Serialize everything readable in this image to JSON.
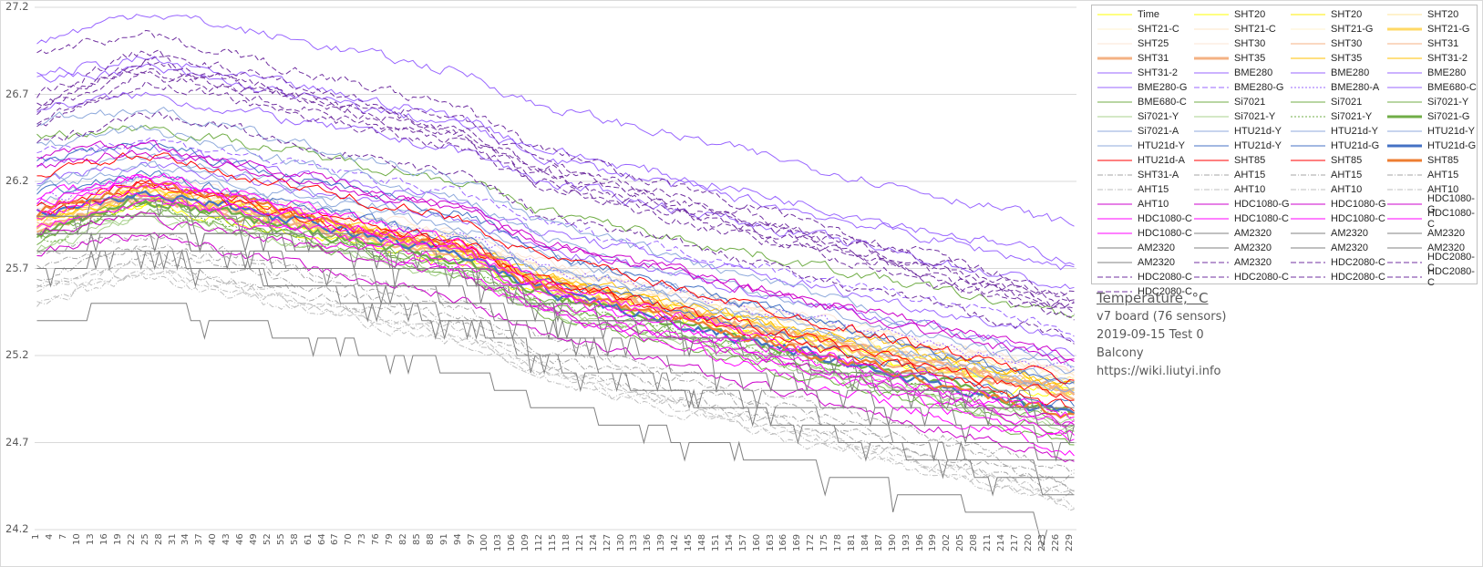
{
  "chart_data": {
    "type": "line",
    "title": "Temperature, °C",
    "annotations": [
      "v7 board (76 sensors)",
      "2019-09-15 Test 0",
      "Balcony",
      "https://wiki.liutyi.info"
    ],
    "xlabel": "",
    "ylabel": "",
    "ylim": [
      24.2,
      27.2
    ],
    "yticks": [
      "27.2",
      "26.7",
      "26.2",
      "25.7",
      "25.2",
      "24.7",
      "24.2"
    ],
    "ytick_values": [
      27.2,
      26.7,
      26.2,
      25.7,
      25.2,
      24.7,
      24.2
    ],
    "x_range": [
      1,
      230
    ],
    "xtick_step": 3,
    "xtick_start": 1,
    "xtick_end": 229,
    "grid": "horizontal",
    "legend_position": "right",
    "series_note": "76 sensor series; values approximated as start/peak/end temperatures read from chart",
    "series": [
      {
        "name": "Time",
        "color": "#ffff00",
        "style": "solid",
        "width": 1,
        "start": 25.95,
        "peak": 26.05,
        "end": 24.95
      },
      {
        "name": "SHT20",
        "color": "#ffff00",
        "style": "solid",
        "width": 1,
        "start": 25.97,
        "peak": 26.1,
        "end": 24.97
      },
      {
        "name": "SHT20",
        "color": "#ffee00",
        "style": "solid",
        "width": 1,
        "start": 25.98,
        "peak": 26.12,
        "end": 25.0
      },
      {
        "name": "SHT20",
        "color": "#ffe699",
        "style": "solid",
        "width": 1,
        "start": 26.0,
        "peak": 26.15,
        "end": 25.05
      },
      {
        "name": "SHT21-C",
        "color": "#fff2cc",
        "style": "solid",
        "width": 1,
        "start": 26.02,
        "peak": 26.2,
        "end": 25.1
      },
      {
        "name": "SHT21-C",
        "color": "#fce4c4",
        "style": "solid",
        "width": 1,
        "start": 26.0,
        "peak": 26.18,
        "end": 25.08
      },
      {
        "name": "SHT21-G",
        "color": "#fff2cc",
        "style": "solid",
        "width": 1,
        "start": 25.99,
        "peak": 26.16,
        "end": 25.05
      },
      {
        "name": "SHT21-G",
        "color": "#ffd966",
        "style": "solid",
        "width": 3,
        "start": 25.97,
        "peak": 26.15,
        "end": 24.98
      },
      {
        "name": "SHT25",
        "color": "#fbe5d6",
        "style": "solid",
        "width": 1,
        "start": 26.05,
        "peak": 26.22,
        "end": 25.12
      },
      {
        "name": "SHT30",
        "color": "#fbe5d6",
        "style": "solid",
        "width": 1,
        "start": 26.03,
        "peak": 26.2,
        "end": 25.1
      },
      {
        "name": "SHT30",
        "color": "#f4b183",
        "style": "solid",
        "width": 1,
        "start": 25.95,
        "peak": 26.14,
        "end": 25.0
      },
      {
        "name": "SHT31",
        "color": "#f4b183",
        "style": "solid",
        "width": 1,
        "start": 25.93,
        "peak": 26.12,
        "end": 24.98
      },
      {
        "name": "SHT31",
        "color": "#f4b183",
        "style": "solid",
        "width": 3,
        "start": 25.92,
        "peak": 26.1,
        "end": 24.96
      },
      {
        "name": "SHT35",
        "color": "#f4b183",
        "style": "solid",
        "width": 3,
        "start": 25.94,
        "peak": 26.12,
        "end": 24.99
      },
      {
        "name": "SHT35",
        "color": "#ffc000",
        "style": "solid",
        "width": 1,
        "start": 25.98,
        "peak": 26.14,
        "end": 25.02
      },
      {
        "name": "SHT31-2",
        "color": "#ffc000",
        "style": "solid",
        "width": 1,
        "start": 26.0,
        "peak": 26.16,
        "end": 25.04
      },
      {
        "name": "SHT31-2",
        "color": "#9966ff",
        "style": "solid",
        "width": 1,
        "start": 27.0,
        "peak": 27.18,
        "end": 25.95
      },
      {
        "name": "BME280",
        "color": "#9966ff",
        "style": "solid",
        "width": 1,
        "start": 26.82,
        "peak": 26.9,
        "end": 25.75
      },
      {
        "name": "BME280",
        "color": "#9966ff",
        "style": "solid",
        "width": 1,
        "start": 26.78,
        "peak": 26.85,
        "end": 25.7
      },
      {
        "name": "BME280",
        "color": "#9966ff",
        "style": "solid",
        "width": 1,
        "start": 26.62,
        "peak": 26.7,
        "end": 25.58
      },
      {
        "name": "BME280-G",
        "color": "#9966ff",
        "style": "solid",
        "width": 1,
        "start": 26.3,
        "peak": 26.4,
        "end": 25.3
      },
      {
        "name": "BME280-G",
        "color": "#9966ff",
        "style": "dash",
        "width": 1,
        "start": 26.35,
        "peak": 26.45,
        "end": 25.35
      },
      {
        "name": "BME280-A",
        "color": "#9966ff",
        "style": "dot",
        "width": 1,
        "start": 26.1,
        "peak": 26.2,
        "end": 25.1
      },
      {
        "name": "BME680-C",
        "color": "#9966ff",
        "style": "solid",
        "width": 1,
        "start": 26.2,
        "peak": 26.3,
        "end": 25.2
      },
      {
        "name": "BME680-C",
        "color": "#70ad47",
        "style": "solid",
        "width": 1,
        "start": 26.45,
        "peak": 26.52,
        "end": 25.42
      },
      {
        "name": "Si7021",
        "color": "#70ad47",
        "style": "solid",
        "width": 1,
        "start": 25.9,
        "peak": 26.1,
        "end": 24.8
      },
      {
        "name": "Si7021",
        "color": "#70ad47",
        "style": "solid",
        "width": 1,
        "start": 25.88,
        "peak": 26.08,
        "end": 24.75
      },
      {
        "name": "Si7021-Y",
        "color": "#70ad47",
        "style": "solid",
        "width": 1,
        "start": 25.85,
        "peak": 26.05,
        "end": 24.7
      },
      {
        "name": "Si7021-Y",
        "color": "#a9d18e",
        "style": "solid",
        "width": 1,
        "start": 25.8,
        "peak": 26.0,
        "end": 24.78
      },
      {
        "name": "Si7021-Y",
        "color": "#a9d18e",
        "style": "solid",
        "width": 1,
        "start": 25.82,
        "peak": 26.02,
        "end": 24.8
      },
      {
        "name": "Si7021-Y",
        "color": "#70ad47",
        "style": "dot",
        "width": 1,
        "start": 25.86,
        "peak": 26.05,
        "end": 24.85
      },
      {
        "name": "Si7021-G",
        "color": "#70ad47",
        "style": "solid",
        "width": 3,
        "start": 25.9,
        "peak": 26.1,
        "end": 24.87
      },
      {
        "name": "Si7021-A",
        "color": "#8faadc",
        "style": "solid",
        "width": 1,
        "start": 26.55,
        "peak": 26.62,
        "end": 25.15
      },
      {
        "name": "HTU21d-Y",
        "color": "#8faadc",
        "style": "solid",
        "width": 1,
        "start": 26.4,
        "peak": 26.5,
        "end": 25.1
      },
      {
        "name": "HTU21d-Y",
        "color": "#8faadc",
        "style": "solid",
        "width": 1,
        "start": 26.2,
        "peak": 26.35,
        "end": 25.05
      },
      {
        "name": "HTU21d-Y",
        "color": "#8faadc",
        "style": "solid",
        "width": 1,
        "start": 26.15,
        "peak": 26.3,
        "end": 25.0
      },
      {
        "name": "HTU21d-Y",
        "color": "#8faadc",
        "style": "solid",
        "width": 1,
        "start": 26.1,
        "peak": 26.25,
        "end": 24.98
      },
      {
        "name": "HTU21d-Y",
        "color": "#4472c4",
        "style": "solid",
        "width": 1,
        "start": 26.3,
        "peak": 26.42,
        "end": 25.02
      },
      {
        "name": "HTU21d-G",
        "color": "#4472c4",
        "style": "solid",
        "width": 1,
        "start": 26.12,
        "peak": 26.25,
        "end": 24.9
      },
      {
        "name": "HTU21d-G",
        "color": "#4472c4",
        "style": "solid",
        "width": 3,
        "start": 26.02,
        "peak": 26.15,
        "end": 24.85
      },
      {
        "name": "HTU21d-A",
        "color": "#ff0000",
        "style": "solid",
        "width": 1,
        "start": 26.25,
        "peak": 26.35,
        "end": 25.05
      },
      {
        "name": "SHT85",
        "color": "#ff0000",
        "style": "solid",
        "width": 1,
        "start": 26.05,
        "peak": 26.2,
        "end": 24.95
      },
      {
        "name": "SHT85",
        "color": "#ff0000",
        "style": "solid",
        "width": 1,
        "start": 26.0,
        "peak": 26.18,
        "end": 24.9
      },
      {
        "name": "SHT85",
        "color": "#ed7d31",
        "style": "solid",
        "width": 3,
        "start": 26.02,
        "peak": 26.2,
        "end": 24.85
      },
      {
        "name": "SHT31-A",
        "color": "#a6a6a6",
        "style": "dashdot",
        "width": 1,
        "start": 25.8,
        "peak": 25.9,
        "end": 24.55
      },
      {
        "name": "AHT15",
        "color": "#a6a6a6",
        "style": "dashdot",
        "width": 1,
        "start": 25.7,
        "peak": 25.85,
        "end": 24.5
      },
      {
        "name": "AHT15",
        "color": "#a6a6a6",
        "style": "dashdot",
        "width": 1,
        "start": 25.65,
        "peak": 25.8,
        "end": 24.45
      },
      {
        "name": "AHT15",
        "color": "#a6a6a6",
        "style": "dashdot",
        "width": 1,
        "start": 25.6,
        "peak": 25.75,
        "end": 24.42
      },
      {
        "name": "AHT15",
        "color": "#bfbfbf",
        "style": "dashdot",
        "width": 1,
        "start": 25.6,
        "peak": 25.72,
        "end": 24.4
      },
      {
        "name": "AHT10",
        "color": "#bfbfbf",
        "style": "dashdot",
        "width": 1,
        "start": 25.55,
        "peak": 25.7,
        "end": 24.38
      },
      {
        "name": "AHT10",
        "color": "#bfbfbf",
        "style": "dashdot",
        "width": 1,
        "start": 25.52,
        "peak": 25.68,
        "end": 24.35
      },
      {
        "name": "AHT10",
        "color": "#bfbfbf",
        "style": "dashdot",
        "width": 1,
        "start": 25.5,
        "peak": 25.65,
        "end": 24.33
      },
      {
        "name": "AHT10",
        "color": "#cc00cc",
        "style": "solid",
        "width": 1,
        "start": 25.78,
        "peak": 25.9,
        "end": 24.6
      },
      {
        "name": "HDC1080-G",
        "color": "#cc00cc",
        "style": "solid",
        "width": 1,
        "start": 26.35,
        "peak": 26.42,
        "end": 25.15
      },
      {
        "name": "HDC1080-G",
        "color": "#cc00cc",
        "style": "solid",
        "width": 1,
        "start": 26.28,
        "peak": 26.38,
        "end": 25.2
      },
      {
        "name": "HDC1080-G",
        "color": "#cc00cc",
        "style": "solid",
        "width": 1,
        "start": 25.92,
        "peak": 26.0,
        "end": 24.8
      },
      {
        "name": "HDC1080-C",
        "color": "#ff00ff",
        "style": "solid",
        "width": 1,
        "start": 26.1,
        "peak": 26.25,
        "end": 24.85
      },
      {
        "name": "HDC1080-C",
        "color": "#ff00ff",
        "style": "solid",
        "width": 1,
        "start": 26.05,
        "peak": 26.2,
        "end": 24.75
      },
      {
        "name": "HDC1080-C",
        "color": "#ff00ff",
        "style": "solid",
        "width": 1,
        "start": 26.0,
        "peak": 26.15,
        "end": 24.7
      },
      {
        "name": "HDC1080-C",
        "color": "#ff00ff",
        "style": "solid",
        "width": 1,
        "start": 25.95,
        "peak": 26.1,
        "end": 24.65
      },
      {
        "name": "HDC1080-C",
        "color": "#ff00ff",
        "style": "solid",
        "width": 1,
        "start": 26.08,
        "peak": 26.22,
        "end": 24.8
      },
      {
        "name": "AM2320",
        "color": "#808080",
        "style": "solid",
        "width": 1,
        "start": 26.0,
        "peak": 26.0,
        "end": 24.9
      },
      {
        "name": "AM2320",
        "color": "#808080",
        "style": "solid",
        "width": 1,
        "start": 25.9,
        "peak": 26.0,
        "end": 24.8
      },
      {
        "name": "AM2320",
        "color": "#808080",
        "style": "solid",
        "width": 1,
        "start": 25.9,
        "peak": 25.9,
        "end": 24.7
      },
      {
        "name": "AM2320",
        "color": "#808080",
        "style": "solid",
        "width": 1,
        "start": 25.8,
        "peak": 25.9,
        "end": 24.6
      },
      {
        "name": "AM2320",
        "color": "#808080",
        "style": "solid",
        "width": 1,
        "start": 25.8,
        "peak": 25.8,
        "end": 24.5
      },
      {
        "name": "AM2320",
        "color": "#808080",
        "style": "solid",
        "width": 1,
        "start": 25.7,
        "peak": 25.8,
        "end": 24.4
      },
      {
        "name": "AM2320",
        "color": "#808080",
        "style": "solid",
        "width": 1,
        "start": 25.4,
        "peak": 25.5,
        "end": 24.2
      },
      {
        "name": "AM2320",
        "color": "#808080",
        "style": "solid",
        "width": 1,
        "start": 26.0,
        "peak": 26.1,
        "end": 24.8
      },
      {
        "name": "AM2320",
        "color": "#7030a0",
        "style": "dash",
        "width": 1,
        "start": 26.95,
        "peak": 27.05,
        "end": 25.55
      },
      {
        "name": "HDC2080-C",
        "color": "#7030a0",
        "style": "dash",
        "width": 1,
        "start": 26.7,
        "peak": 26.95,
        "end": 25.52
      },
      {
        "name": "HDC2080-C",
        "color": "#7030a0",
        "style": "dash",
        "width": 1,
        "start": 26.65,
        "peak": 26.9,
        "end": 25.5
      },
      {
        "name": "HDC2080-C",
        "color": "#7030a0",
        "style": "dash",
        "width": 1,
        "start": 26.62,
        "peak": 26.88,
        "end": 25.48
      },
      {
        "name": "HDC2080-C",
        "color": "#7030a0",
        "style": "dash",
        "width": 1,
        "start": 26.6,
        "peak": 26.85,
        "end": 25.46
      },
      {
        "name": "HDC2080-C",
        "color": "#7030a0",
        "style": "dash",
        "width": 1,
        "start": 26.55,
        "peak": 26.82,
        "end": 25.44
      },
      {
        "name": "HDC2080-C",
        "color": "#7030a0",
        "style": "dash",
        "width": 1,
        "start": 26.5,
        "peak": 26.78,
        "end": 25.42
      },
      {
        "name": "HDC2080-C",
        "color": "#7030a0",
        "style": "dash",
        "width": 1,
        "start": 26.4,
        "peak": 26.6,
        "end": 25.3
      }
    ]
  }
}
